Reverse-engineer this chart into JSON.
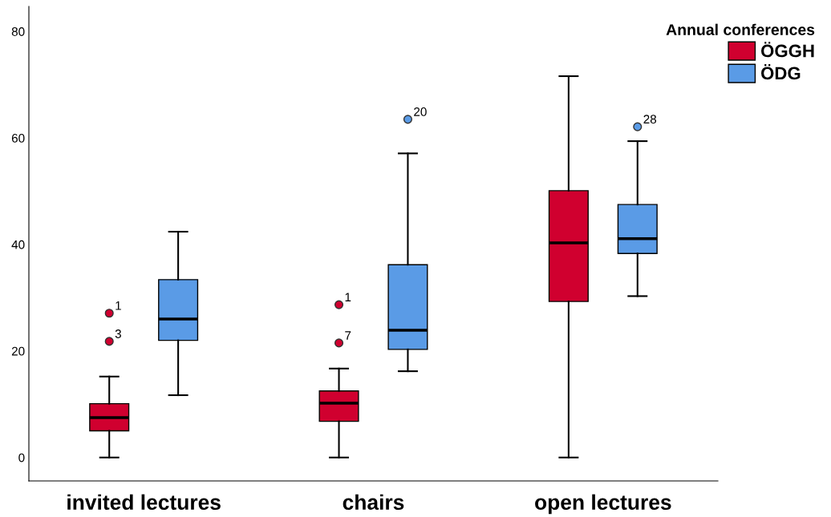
{
  "chart_data": {
    "type": "box",
    "legend_title": "Annual conferences",
    "legend": "top right",
    "categories": [
      "invited lectures",
      "chairs",
      "open lectures"
    ],
    "ylim": [
      -4.4,
      84.7
    ],
    "yticks": [
      0,
      20,
      40,
      60,
      80
    ],
    "grid": false,
    "series": [
      {
        "name": "ÖGGH",
        "color": "#d0002f",
        "boxes": [
          {
            "low": 0,
            "q1": 5.0,
            "median": 7.5,
            "q3": 10.1,
            "high": 15.2,
            "outliers": [
              21.8,
              27.1
            ]
          },
          {
            "low": 0,
            "q1": 6.8,
            "median": 10.2,
            "q3": 12.5,
            "high": 16.7,
            "outliers": [
              21.5,
              28.7
            ]
          },
          {
            "low": 0,
            "q1": 29.3,
            "median": 40.3,
            "q3": 50.1,
            "high": 71.6
          }
        ]
      },
      {
        "name": "ÖDG",
        "color": "#5a9be6",
        "boxes": [
          {
            "low": 11.7,
            "q1": 22.0,
            "median": 26.0,
            "q3": 33.4,
            "high": 42.4
          },
          {
            "low": 16.2,
            "q1": 20.3,
            "median": 23.9,
            "q3": 36.2,
            "high": 57.1,
            "outliers": [
              63.5
            ]
          },
          {
            "low": 30.3,
            "q1": 38.3,
            "median": 41.1,
            "q3": 47.5,
            "high": 59.4,
            "outliers": [
              62.1
            ]
          }
        ]
      }
    ],
    "annotations": [
      "3",
      "1",
      "7",
      "1",
      "20",
      "28"
    ]
  }
}
